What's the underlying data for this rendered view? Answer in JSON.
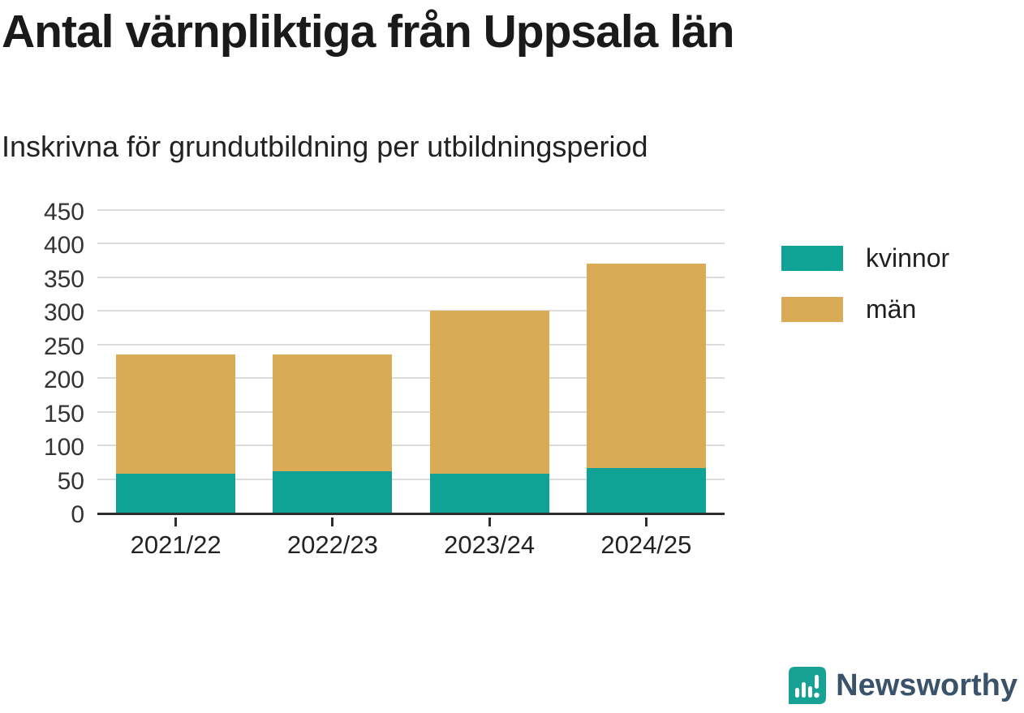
{
  "title": "Antal värnpliktiga från Uppsala län",
  "subtitle": "Inskrivna för grundutbildning per utbildningsperiod",
  "chart_data": {
    "type": "bar",
    "stacked": true,
    "title": "Antal värnpliktiga från Uppsala län",
    "subtitle": "Inskrivna för grundutbildning per utbildningsperiod",
    "categories": [
      "2021/22",
      "2022/23",
      "2023/24",
      "2024/25"
    ],
    "series": [
      {
        "name": "kvinnor",
        "color": "#0fa396",
        "values": [
          58,
          62,
          58,
          66
        ]
      },
      {
        "name": "män",
        "color": "#d9ab55",
        "values": [
          177,
          173,
          243,
          305
        ]
      }
    ],
    "totals": [
      235,
      235,
      301,
      371
    ],
    "xlabel": "",
    "ylabel": "",
    "ylim": [
      0,
      450
    ],
    "yticks": [
      0,
      50,
      100,
      150,
      200,
      250,
      300,
      350,
      400,
      450
    ],
    "grid": true,
    "legend_position": "right",
    "legend": [
      "kvinnor",
      "män"
    ],
    "grid_color": "#dbdbdb",
    "axis_color": "#2e2e2e"
  },
  "branding": {
    "logo_text": "Newsworthy",
    "logo_icon_color": "#17a295",
    "logo_text_color": "#3a536b"
  }
}
